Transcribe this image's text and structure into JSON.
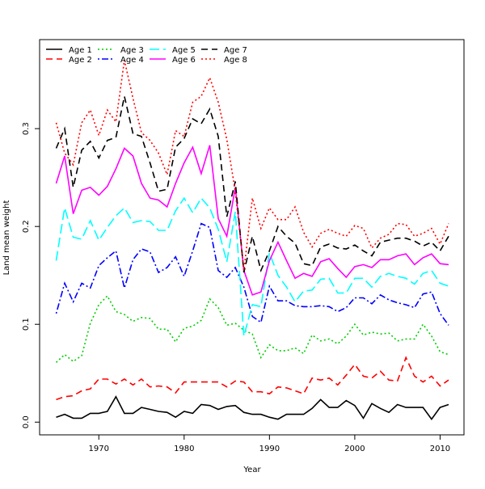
{
  "chart_data": {
    "type": "line",
    "title": "",
    "xlabel": "Year",
    "ylabel": "Land mean weight",
    "xlim": [
      1963.06,
      2012.8
    ],
    "ylim": [
      -0.013,
      0.391
    ],
    "grid": false,
    "legend_position": "top-left",
    "x_ticks": [
      1970,
      1980,
      1990,
      2000,
      2010
    ],
    "x_tick_labels": [
      "1970",
      "1980",
      "1990",
      "2000",
      "2010"
    ],
    "y_ticks": [
      0.0,
      0.1,
      0.2,
      0.3
    ],
    "y_tick_labels": [
      "0.0",
      "0.1",
      "0.2",
      "0.3"
    ],
    "x_start": 1965,
    "x_end": 2011,
    "series": [
      {
        "name": "Age 1",
        "color": "#000000",
        "dash": "solid",
        "values": [
          0.005,
          0.008,
          0.004,
          0.004,
          0.009,
          0.009,
          0.011,
          0.026,
          0.009,
          0.009,
          0.015,
          0.013,
          0.011,
          0.01,
          0.005,
          0.011,
          0.009,
          0.018,
          0.017,
          0.013,
          0.016,
          0.017,
          0.01,
          0.008,
          0.008,
          0.005,
          0.003,
          0.008,
          0.008,
          0.008,
          0.014,
          0.023,
          0.015,
          0.015,
          0.022,
          0.017,
          0.004,
          0.019,
          0.014,
          0.01,
          0.018,
          0.015,
          0.015,
          0.015,
          0.003,
          0.015,
          0.018
        ]
      },
      {
        "name": "Age 2",
        "color": "#ff0000",
        "dash": "dashed",
        "values": [
          0.023,
          0.026,
          0.027,
          0.032,
          0.034,
          0.044,
          0.044,
          0.039,
          0.044,
          0.038,
          0.044,
          0.036,
          0.037,
          0.036,
          0.03,
          0.041,
          0.041,
          0.041,
          0.041,
          0.041,
          0.036,
          0.042,
          0.041,
          0.031,
          0.031,
          0.029,
          0.036,
          0.035,
          0.032,
          0.029,
          0.045,
          0.043,
          0.045,
          0.038,
          0.048,
          0.059,
          0.047,
          0.045,
          0.052,
          0.043,
          0.042,
          0.066,
          0.047,
          0.041,
          0.047,
          0.037,
          0.043
        ]
      },
      {
        "name": "Age 3",
        "color": "#00cd00",
        "dash": "dotted",
        "values": [
          0.061,
          0.069,
          0.062,
          0.068,
          0.101,
          0.12,
          0.129,
          0.113,
          0.11,
          0.103,
          0.107,
          0.106,
          0.095,
          0.095,
          0.082,
          0.096,
          0.098,
          0.104,
          0.126,
          0.117,
          0.099,
          0.101,
          0.094,
          0.09,
          0.066,
          0.079,
          0.073,
          0.073,
          0.076,
          0.07,
          0.089,
          0.083,
          0.085,
          0.08,
          0.088,
          0.1,
          0.089,
          0.092,
          0.09,
          0.091,
          0.083,
          0.085,
          0.085,
          0.1,
          0.088,
          0.072,
          0.069
        ]
      },
      {
        "name": "Age 4",
        "color": "#0000ff",
        "dash": "dotdash",
        "values": [
          0.111,
          0.142,
          0.123,
          0.142,
          0.137,
          0.16,
          0.168,
          0.175,
          0.137,
          0.166,
          0.177,
          0.174,
          0.153,
          0.158,
          0.169,
          0.149,
          0.175,
          0.203,
          0.199,
          0.155,
          0.148,
          0.158,
          0.138,
          0.108,
          0.102,
          0.139,
          0.124,
          0.124,
          0.119,
          0.118,
          0.118,
          0.119,
          0.118,
          0.113,
          0.117,
          0.127,
          0.127,
          0.121,
          0.13,
          0.125,
          0.122,
          0.12,
          0.117,
          0.131,
          0.133,
          0.111,
          0.099
        ]
      },
      {
        "name": "Age 5",
        "color": "#00ffff",
        "dash": "longdash",
        "values": [
          0.165,
          0.219,
          0.189,
          0.187,
          0.206,
          0.186,
          0.199,
          0.211,
          0.219,
          0.204,
          0.206,
          0.205,
          0.196,
          0.196,
          0.216,
          0.229,
          0.214,
          0.229,
          0.219,
          0.197,
          0.164,
          0.215,
          0.088,
          0.12,
          0.118,
          0.173,
          0.15,
          0.138,
          0.123,
          0.134,
          0.135,
          0.146,
          0.147,
          0.132,
          0.132,
          0.147,
          0.147,
          0.138,
          0.149,
          0.152,
          0.149,
          0.147,
          0.141,
          0.152,
          0.155,
          0.142,
          0.139
        ]
      },
      {
        "name": "Age 6",
        "color": "#ff00ff",
        "dash": "solid",
        "values": [
          0.244,
          0.272,
          0.213,
          0.237,
          0.24,
          0.232,
          0.241,
          0.259,
          0.28,
          0.272,
          0.244,
          0.229,
          0.227,
          0.22,
          0.244,
          0.265,
          0.281,
          0.254,
          0.283,
          0.208,
          0.19,
          0.24,
          0.155,
          0.13,
          0.133,
          0.165,
          0.184,
          0.165,
          0.147,
          0.152,
          0.149,
          0.164,
          0.167,
          0.157,
          0.148,
          0.159,
          0.161,
          0.158,
          0.166,
          0.166,
          0.17,
          0.172,
          0.161,
          0.168,
          0.172,
          0.162,
          0.161
        ]
      },
      {
        "name": "Age 7",
        "color": "#000000",
        "dash": "dashed",
        "values": [
          0.28,
          0.3,
          0.24,
          0.278,
          0.287,
          0.27,
          0.288,
          0.291,
          0.333,
          0.295,
          0.292,
          0.265,
          0.236,
          0.238,
          0.281,
          0.29,
          0.31,
          0.305,
          0.32,
          0.292,
          0.21,
          0.246,
          0.153,
          0.19,
          0.155,
          0.175,
          0.2,
          0.19,
          0.183,
          0.162,
          0.16,
          0.179,
          0.182,
          0.178,
          0.177,
          0.181,
          0.175,
          0.17,
          0.184,
          0.186,
          0.188,
          0.188,
          0.185,
          0.18,
          0.184,
          0.175,
          0.19
        ]
      },
      {
        "name": "Age 8",
        "color": "#ff0000",
        "dash": "dotted",
        "values": [
          0.306,
          0.275,
          0.263,
          0.306,
          0.319,
          0.293,
          0.319,
          0.307,
          0.37,
          0.331,
          0.296,
          0.288,
          0.275,
          0.253,
          0.298,
          0.292,
          0.327,
          0.333,
          0.352,
          0.327,
          0.289,
          0.236,
          0.155,
          0.229,
          0.198,
          0.219,
          0.207,
          0.207,
          0.22,
          0.194,
          0.179,
          0.193,
          0.197,
          0.193,
          0.19,
          0.201,
          0.198,
          0.178,
          0.188,
          0.192,
          0.203,
          0.202,
          0.19,
          0.193,
          0.198,
          0.182,
          0.203
        ]
      }
    ]
  }
}
